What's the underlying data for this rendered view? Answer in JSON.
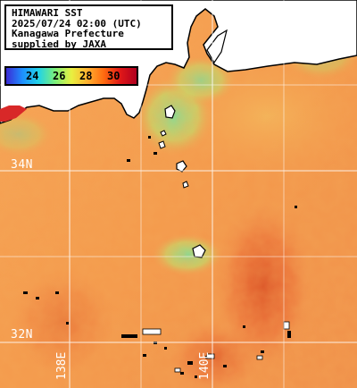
{
  "title_box": {
    "line1": "HIMAWARI SST",
    "line2": "2025/07/24 02:00 (UTC)",
    "line3": "Kanagawa Prefecture",
    "line4": "supplied by JAXA"
  },
  "legend": {
    "labels": [
      "24",
      "26",
      "28",
      "30"
    ],
    "colors": [
      "#3b2bd6",
      "#1e90ff",
      "#22d3e6",
      "#7cf07a",
      "#e8f040",
      "#ffb030",
      "#ff6a10",
      "#e01818",
      "#b00020"
    ]
  },
  "grid": {
    "lat_labels": [
      "34N",
      "32N"
    ],
    "lon_labels": [
      "138E",
      "140E"
    ]
  },
  "colors": {
    "land": "#ffffff",
    "coast": "#000000",
    "sea_warm": "#f5a050",
    "sea_hot": "#e05a28",
    "sea_cool": "#8ee08a",
    "gridline": "#ffffff"
  }
}
